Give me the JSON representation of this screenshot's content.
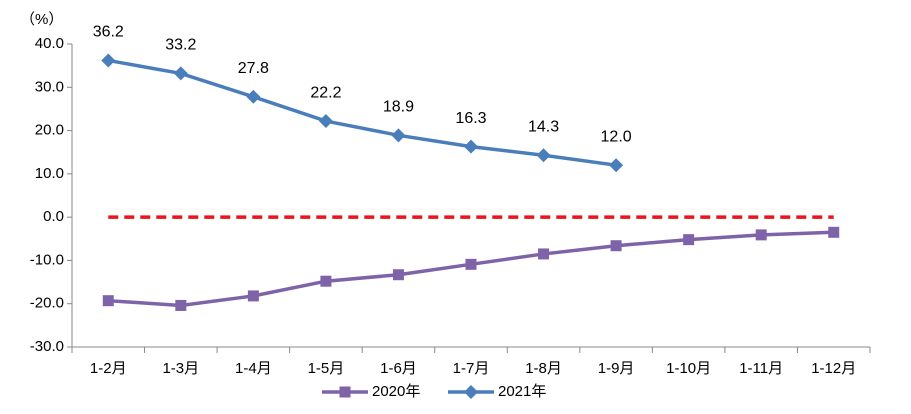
{
  "chart_data": {
    "type": "line",
    "y_unit_label": "（%）",
    "categories": [
      "1-2月",
      "1-3月",
      "1-4月",
      "1-5月",
      "1-6月",
      "1-7月",
      "1-8月",
      "1-9月",
      "1-10月",
      "1-11月",
      "1-12月"
    ],
    "series": [
      {
        "name": "2020年",
        "color": "#7f63a8",
        "marker": "square",
        "values": [
          -19.3,
          -20.4,
          -18.2,
          -14.8,
          -13.3,
          -10.9,
          -8.5,
          -6.6,
          -5.2,
          -4.1,
          -3.5
        ]
      },
      {
        "name": "2021年",
        "color": "#4a7ebb",
        "marker": "diamond",
        "values": [
          36.2,
          33.2,
          27.8,
          22.2,
          18.9,
          16.3,
          14.3,
          12.0,
          null,
          null,
          null
        ],
        "value_labels": [
          "36.2",
          "33.2",
          "27.8",
          "22.2",
          "18.9",
          "16.3",
          "14.3",
          "12.0",
          null,
          null,
          null
        ]
      }
    ],
    "reference_line": {
      "value": 0,
      "color": "#e8161b"
    },
    "ylim": [
      -30,
      40
    ],
    "yticks": [
      {
        "value": -30,
        "label": "-30.0"
      },
      {
        "value": -20,
        "label": "-20.0"
      },
      {
        "value": -10,
        "label": "-10.0"
      },
      {
        "value": 0,
        "label": "0.0"
      },
      {
        "value": 10,
        "label": "10.0"
      },
      {
        "value": 20,
        "label": "20.0"
      },
      {
        "value": 30,
        "label": "30.0"
      },
      {
        "value": 40,
        "label": "40.0"
      }
    ],
    "grid": false,
    "legend": "bottom"
  }
}
